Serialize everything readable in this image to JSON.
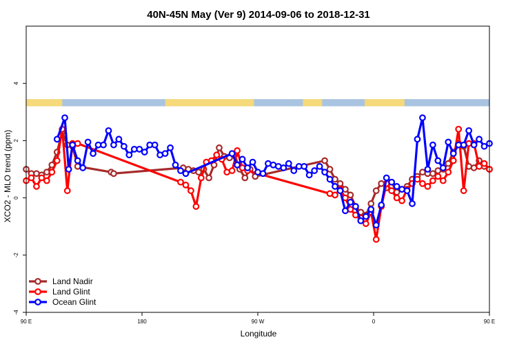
{
  "chart_data": {
    "type": "line",
    "title": "40N-45N May (Ver 9)   2014-09-06 to 2018-12-31",
    "xlabel": "Longitude",
    "ylabel": "XCO2 - MLO trend (ppm)",
    "xlim": [
      90,
      450
    ],
    "ylim": [
      -4,
      6
    ],
    "x_ticks": [
      {
        "value": 90,
        "label": "90 E"
      },
      {
        "value": 180,
        "label": "180"
      },
      {
        "value": 270,
        "label": "90 W"
      },
      {
        "value": 360,
        "label": "0"
      },
      {
        "value": 450,
        "label": "90 E"
      },
      {
        "value": 540,
        "label": "180"
      }
    ],
    "y_ticks": [
      -4,
      -2,
      0,
      2,
      4
    ],
    "legend_position": "bottom-left",
    "grid": false,
    "land_mask_band": {
      "y_range": [
        3.2,
        3.45
      ],
      "land_color": "#f5d97a",
      "ocean_color": "#a9c4e0"
    },
    "series": [
      {
        "name": "Land Nadir",
        "color": "#a52a2a",
        "x": [
          90,
          94,
          98,
          102,
          106,
          110,
          114,
          118,
          122,
          126,
          130,
          156,
          158,
          212,
          216,
          220,
          224,
          228,
          232,
          236,
          240,
          244,
          248,
          252,
          256,
          260,
          264,
          268,
          322,
          326,
          330,
          334,
          338,
          342,
          346,
          350,
          354,
          358,
          362,
          366,
          370,
          374,
          378,
          382,
          386,
          390,
          394,
          398,
          402,
          406,
          410,
          414,
          418,
          422,
          426,
          430,
          434,
          438,
          442,
          446,
          450
        ],
        "y": [
          1.0,
          0.85,
          0.85,
          0.8,
          0.9,
          1.15,
          1.6,
          2.3,
          1.85,
          1.8,
          1.1,
          0.9,
          0.85,
          1.05,
          1.0,
          0.95,
          0.9,
          1.0,
          0.7,
          1.15,
          1.75,
          1.45,
          1.4,
          1.5,
          1.0,
          0.7,
          1.0,
          0.75,
          1.3,
          1.0,
          0.65,
          0.5,
          0.3,
          0.1,
          -0.3,
          -0.5,
          -0.6,
          -0.2,
          0.25,
          0.5,
          0.35,
          0.55,
          0.2,
          0.3,
          0.4,
          0.65,
          0.75,
          0.9,
          0.85,
          0.85,
          0.95,
          1.0,
          1.2,
          1.6,
          1.9,
          1.8,
          1.1,
          1.05,
          1.3,
          1.1,
          1.0
        ]
      },
      {
        "name": "Land Glint",
        "color": "#ff0000",
        "x": [
          90,
          94,
          98,
          102,
          106,
          110,
          114,
          118,
          122,
          126,
          130,
          210,
          214,
          218,
          222,
          226,
          230,
          234,
          238,
          242,
          246,
          250,
          254,
          258,
          262,
          326,
          330,
          334,
          338,
          342,
          346,
          350,
          354,
          358,
          362,
          366,
          370,
          374,
          378,
          382,
          386,
          390,
          394,
          398,
          402,
          406,
          410,
          414,
          418,
          422,
          426,
          430,
          434,
          438,
          442,
          446,
          450
        ],
        "y": [
          0.6,
          0.7,
          0.4,
          0.7,
          0.6,
          0.9,
          1.3,
          2.4,
          0.25,
          1.9,
          1.9,
          0.55,
          0.45,
          0.25,
          -0.3,
          0.7,
          1.25,
          1.3,
          1.5,
          1.35,
          0.9,
          0.95,
          1.65,
          1.05,
          0.95,
          0.15,
          0.1,
          0.3,
          0.0,
          -0.4,
          -0.6,
          -0.7,
          -0.9,
          -0.5,
          -1.45,
          -0.3,
          0.5,
          0.25,
          0.0,
          -0.1,
          0.3,
          0.5,
          0.65,
          0.5,
          0.4,
          0.6,
          0.75,
          0.6,
          0.9,
          1.3,
          2.4,
          0.25,
          1.9,
          1.9,
          1.1,
          1.2,
          1.0
        ]
      },
      {
        "name": "Ocean Glint",
        "color": "#0000ff",
        "x": [
          114,
          120,
          123,
          126,
          130,
          134,
          138,
          142,
          146,
          150,
          154,
          158,
          162,
          166,
          170,
          174,
          178,
          182,
          186,
          190,
          194,
          198,
          202,
          206,
          210,
          214,
          250,
          254,
          258,
          262,
          266,
          270,
          274,
          278,
          282,
          286,
          290,
          294,
          298,
          302,
          306,
          310,
          314,
          318,
          322,
          326,
          330,
          334,
          338,
          342,
          346,
          350,
          354,
          358,
          362,
          366,
          370,
          374,
          378,
          382,
          386,
          390,
          394,
          398,
          402,
          406,
          410,
          414,
          418,
          422,
          426,
          430,
          434,
          438,
          442,
          446,
          450
        ],
        "y": [
          2.05,
          2.8,
          1.0,
          1.85,
          1.3,
          1.05,
          1.95,
          1.55,
          1.85,
          1.85,
          2.35,
          1.85,
          2.05,
          1.8,
          1.5,
          1.7,
          1.7,
          1.6,
          1.85,
          1.85,
          1.5,
          1.55,
          1.75,
          1.15,
          0.95,
          0.85,
          1.55,
          1.15,
          1.35,
          1.05,
          1.25,
          0.9,
          0.85,
          1.2,
          1.15,
          1.1,
          1.05,
          1.2,
          0.95,
          1.1,
          1.1,
          0.8,
          0.95,
          1.1,
          0.9,
          0.65,
          0.4,
          0.25,
          -0.45,
          -0.15,
          -0.3,
          -0.8,
          -0.65,
          -0.4,
          -0.95,
          -0.25,
          0.7,
          0.55,
          0.4,
          0.3,
          0.25,
          -0.2,
          2.05,
          2.8,
          1.0,
          1.85,
          1.3,
          1.05,
          1.95,
          1.55,
          1.85,
          1.85,
          2.35,
          1.85,
          2.05,
          1.8,
          1.9
        ]
      }
    ]
  }
}
